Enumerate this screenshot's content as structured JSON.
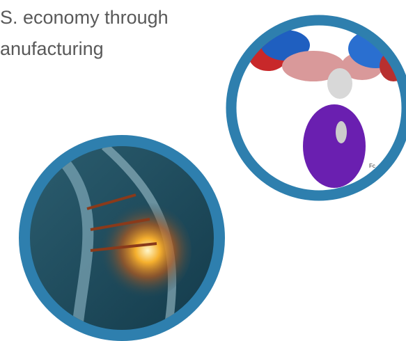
{
  "text": {
    "lines": [
      "S. economy through",
      "anufacturing"
    ]
  },
  "images": {
    "antibody": {
      "label": "Fc"
    }
  }
}
